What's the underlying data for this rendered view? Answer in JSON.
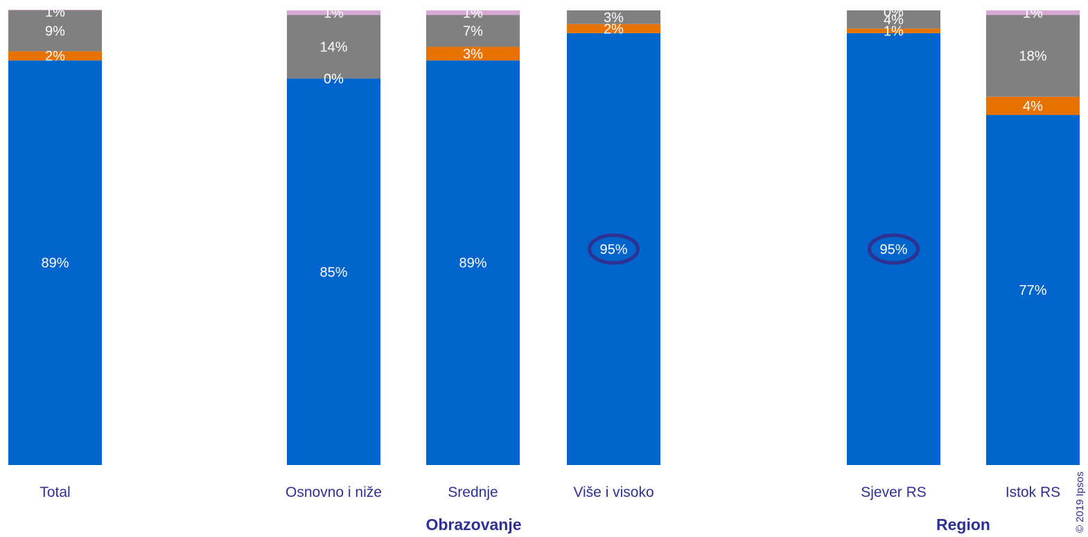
{
  "chart_data": {
    "type": "bar",
    "stacked": true,
    "orientation": "vertical",
    "ylim": [
      0,
      100
    ],
    "grid": false,
    "legend": "none",
    "categories": [
      "Total",
      "Osnovno i niže",
      "Srednje",
      "Više i visoko",
      "Sjever RS",
      "Istok RS"
    ],
    "category_group": [
      null,
      0,
      0,
      0,
      1,
      1
    ],
    "groups": [
      "Obrazovanje",
      "Region"
    ],
    "series": [
      {
        "color": "#0064cd",
        "values": [
          89,
          85,
          89,
          95,
          95,
          77
        ],
        "labels": [
          "89%",
          "85%",
          "89%",
          "95%",
          "95%",
          "77%"
        ]
      },
      {
        "color": "#e87200",
        "values": [
          2,
          0,
          3,
          2,
          1,
          4
        ],
        "labels": [
          "2%",
          "0%",
          "3%",
          "2%",
          "1%",
          "4%"
        ]
      },
      {
        "color": "#808080",
        "values": [
          9,
          14,
          7,
          3,
          4,
          18
        ],
        "labels": [
          "9%",
          "14%",
          "7%",
          "3%",
          "4%",
          "18%"
        ]
      },
      {
        "color": "#d6a8d6",
        "values": [
          1,
          1,
          1,
          0,
          0,
          1
        ],
        "labels": [
          "1%",
          "1%",
          "1%",
          "",
          "0%",
          "1%"
        ]
      }
    ],
    "highlighted": [
      {
        "category": 3,
        "series": 0
      },
      {
        "category": 4,
        "series": 0
      }
    ]
  },
  "copyright": "© 2019 Ipsos"
}
